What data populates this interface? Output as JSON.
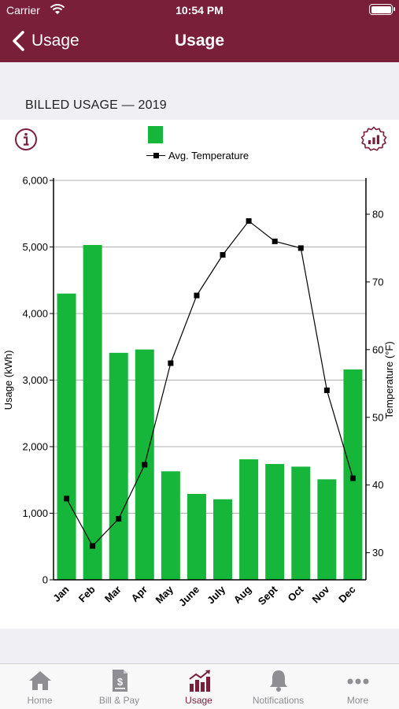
{
  "status_bar": {
    "carrier": "Carrier",
    "time": "10:54 PM"
  },
  "nav": {
    "back_label": "Usage",
    "title": "Usage"
  },
  "section_header": "BILLED USAGE — 2019",
  "legend": {
    "usage_color": "#16b63a",
    "temperature_label": "Avg. Temperature"
  },
  "icons": {
    "info": "info-icon",
    "settings": "chart-settings-icon"
  },
  "chart_data": {
    "type": "bar",
    "categories": [
      "Jan",
      "Feb",
      "Mar",
      "Apr",
      "May",
      "June",
      "July",
      "Aug",
      "Sept",
      "Oct",
      "Nov",
      "Dec"
    ],
    "series": [
      {
        "type": "bar",
        "axis": "left",
        "color": "#16b63a",
        "values": [
          4300,
          5030,
          3410,
          3460,
          1630,
          1290,
          1210,
          1810,
          1740,
          1700,
          1510,
          3160
        ]
      },
      {
        "name": "Avg. Temperature",
        "type": "line",
        "axis": "right",
        "color": "#000000",
        "marker": "square",
        "values": [
          38,
          31,
          35,
          43,
          58,
          68,
          74,
          79,
          76,
          75,
          54,
          41
        ]
      }
    ],
    "ylabel": "Usage (kWh)",
    "ylim": [
      0,
      6000
    ],
    "yticks": [
      "0",
      "1,000",
      "2,000",
      "3,000",
      "4,000",
      "5,000",
      "6,000"
    ],
    "y2label": "Temperature (°F)",
    "y2lim": [
      26,
      85
    ],
    "y2ticks": [
      "30",
      "40",
      "50",
      "60",
      "70",
      "80"
    ],
    "grid": true,
    "legend_position": "top-center"
  },
  "tabs": [
    {
      "label": "Home",
      "icon": "home-icon",
      "active": false
    },
    {
      "label": "Bill & Pay",
      "icon": "bill-icon",
      "active": false
    },
    {
      "label": "Usage",
      "icon": "usage-chart-icon",
      "active": true
    },
    {
      "label": "Notifications",
      "icon": "bell-icon",
      "active": false
    },
    {
      "label": "More",
      "icon": "more-icon",
      "active": false
    }
  ],
  "colors": {
    "brand": "#7a1f3a",
    "bar_green": "#16b63a",
    "tab_inactive": "#8e8e93"
  }
}
